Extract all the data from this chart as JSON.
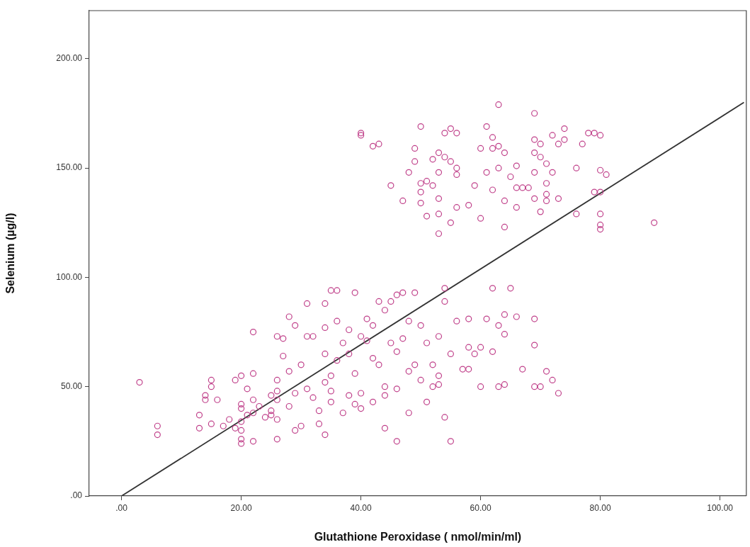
{
  "chart_data": {
    "type": "scatter",
    "xlabel": "Glutathione Peroxidase ( nmol/min/ml)",
    "ylabel": "Selenium (µg/l)",
    "xlim": [
      -5.4,
      104.4
    ],
    "ylim": [
      0,
      222
    ],
    "xticks": [
      {
        "value": 0,
        "label": ".00"
      },
      {
        "value": 20,
        "label": "20.00"
      },
      {
        "value": 40,
        "label": "40.00"
      },
      {
        "value": 60,
        "label": "60.00"
      },
      {
        "value": 80,
        "label": "80.00"
      },
      {
        "value": 100,
        "label": "100.00"
      }
    ],
    "yticks": [
      {
        "value": 0,
        "label": ".00"
      },
      {
        "value": 50,
        "label": "50.00"
      },
      {
        "value": 100,
        "label": "100.00"
      },
      {
        "value": 150,
        "label": "150.00"
      },
      {
        "value": 200,
        "label": "200.00"
      }
    ],
    "grid": false,
    "legend": false,
    "series": [
      {
        "type": "scatter",
        "marker": "circle",
        "color": "#c0408a",
        "x": [
          40,
          40,
          42,
          43,
          45,
          47,
          48,
          49,
          49,
          50,
          50,
          50,
          50,
          51,
          51,
          52,
          52,
          53,
          53,
          53,
          53,
          53,
          54,
          54,
          55,
          55,
          55,
          56,
          56,
          56,
          56,
          58,
          59,
          60,
          60,
          61,
          61,
          62,
          62,
          62,
          63,
          63,
          63,
          64,
          64,
          64,
          65,
          66,
          66,
          66,
          67,
          68,
          69,
          69,
          69,
          69,
          69,
          70,
          70,
          70,
          71,
          71,
          71,
          71,
          72,
          72,
          73,
          73,
          74,
          74,
          76,
          76,
          77,
          78,
          79,
          79,
          80,
          80,
          80,
          80,
          80,
          80,
          81,
          89,
          3,
          6,
          6,
          13,
          13,
          14,
          14,
          15,
          15,
          15,
          16,
          17,
          18,
          19,
          19,
          20,
          20,
          20,
          20,
          20,
          20,
          20,
          21,
          21,
          22,
          22,
          22,
          22,
          22,
          23,
          24,
          25,
          25,
          25,
          26,
          26,
          26,
          26,
          26,
          26,
          27,
          27,
          28,
          28,
          28,
          29,
          29,
          29,
          30,
          30,
          31,
          31,
          31,
          32,
          32,
          33,
          33,
          34,
          34,
          34,
          34,
          34,
          35,
          35,
          35,
          35,
          36,
          36,
          36,
          37,
          37,
          38,
          38,
          38,
          39,
          39,
          39,
          40,
          40,
          40,
          41,
          41,
          42,
          42,
          42,
          43,
          43,
          44,
          44,
          44,
          44,
          45,
          45,
          46,
          46,
          46,
          46,
          47,
          47,
          48,
          48,
          48,
          49,
          49,
          50,
          50,
          51,
          51,
          52,
          52,
          53,
          53,
          53,
          54,
          54,
          54,
          55,
          55,
          56,
          57,
          58,
          58,
          58,
          59,
          60,
          60,
          61,
          62,
          62,
          63,
          63,
          64,
          64,
          64,
          65,
          66,
          67,
          69,
          69,
          69,
          70,
          71,
          72,
          73
        ],
        "values": [
          166,
          165,
          160,
          161,
          142,
          135,
          148,
          153,
          159,
          169,
          139,
          134,
          143,
          128,
          144,
          142,
          154,
          157,
          148,
          136,
          129,
          120,
          166,
          155,
          168,
          125,
          153,
          147,
          150,
          166,
          132,
          133,
          142,
          159,
          127,
          169,
          148,
          164,
          159,
          140,
          179,
          160,
          150,
          157,
          135,
          123,
          146,
          151,
          141,
          132,
          141,
          141,
          175,
          163,
          157,
          148,
          136,
          155,
          161,
          130,
          135,
          138,
          143,
          152,
          165,
          148,
          161,
          136,
          168,
          163,
          150,
          129,
          161,
          166,
          166,
          139,
          165,
          149,
          129,
          124,
          122,
          139,
          147,
          125,
          52,
          32,
          28,
          31,
          37,
          44,
          46,
          33,
          50,
          53,
          44,
          32,
          35,
          31,
          53,
          55,
          42,
          40,
          34,
          30,
          26,
          24,
          49,
          37,
          75,
          56,
          44,
          38,
          25,
          41,
          36,
          46,
          37,
          39,
          53,
          48,
          44,
          35,
          26,
          73,
          72,
          64,
          82,
          57,
          41,
          78,
          30,
          47,
          60,
          32,
          88,
          73,
          49,
          73,
          45,
          39,
          33,
          88,
          77,
          65,
          52,
          28,
          94,
          55,
          48,
          43,
          94,
          62,
          80,
          70,
          38,
          76,
          65,
          46,
          93,
          56,
          42,
          47,
          40,
          73,
          71,
          81,
          43,
          63,
          78,
          89,
          60,
          85,
          50,
          46,
          31,
          89,
          70,
          92,
          66,
          49,
          25,
          93,
          72,
          38,
          57,
          80,
          93,
          60,
          53,
          78,
          43,
          70,
          50,
          60,
          51,
          55,
          73,
          95,
          89,
          36,
          25,
          65,
          80,
          58,
          68,
          58,
          81,
          65,
          50,
          68,
          81,
          66,
          95,
          50,
          78,
          74,
          83,
          51,
          95,
          82,
          58,
          81,
          69,
          50,
          50,
          57,
          53,
          47
        ]
      },
      {
        "type": "line",
        "marker": "none",
        "line_style": "solid",
        "color": "#333333",
        "x": [
          0,
          104
        ],
        "values": [
          0,
          180
        ]
      }
    ]
  }
}
